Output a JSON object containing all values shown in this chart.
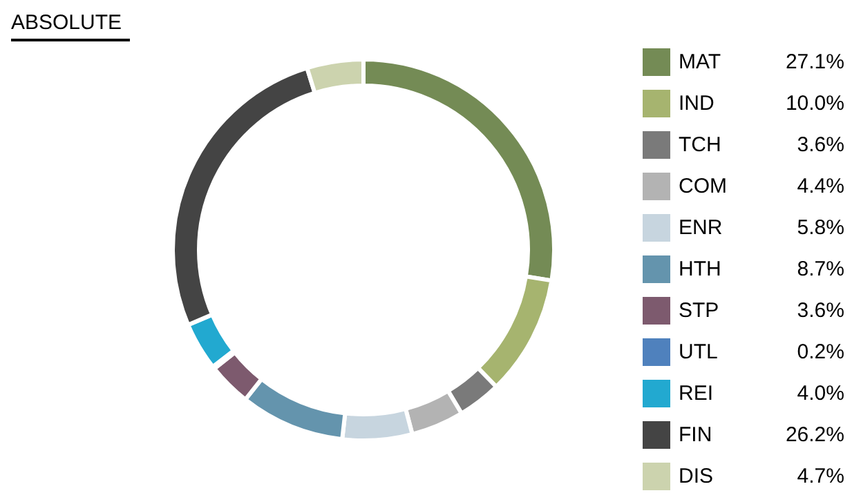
{
  "chart_data": {
    "type": "donut",
    "title": "ABSOLUTE",
    "categories": [
      "MAT",
      "IND",
      "TCH",
      "COM",
      "ENR",
      "HTH",
      "STP",
      "UTL",
      "REI",
      "FIN",
      "DIS"
    ],
    "values": [
      27.1,
      10.0,
      3.6,
      4.4,
      5.8,
      8.7,
      3.6,
      0.2,
      4.0,
      26.2,
      4.7
    ],
    "value_labels": [
      "27.1%",
      "10.0%",
      "3.6%",
      "4.4%",
      "5.8%",
      "8.7%",
      "3.6%",
      "0.2%",
      "4.0%",
      "26.2%",
      "4.7%"
    ],
    "colors": [
      "#748b55",
      "#a6b46f",
      "#7a7a7a",
      "#b3b3b3",
      "#c7d5df",
      "#6494ad",
      "#7d5a6e",
      "#4f81bd",
      "#22a9d0",
      "#444444",
      "#ccd3ae"
    ],
    "legend": "right"
  }
}
